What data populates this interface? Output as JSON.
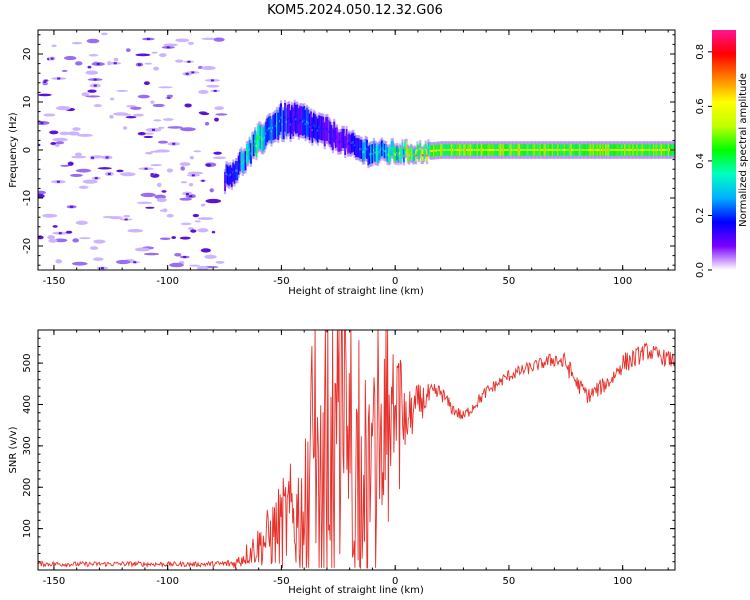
{
  "title": "KOM5.2024.050.12.32.G06",
  "colors": {
    "snr_line": "#e8302a",
    "scatter_light": "#cdb4ff",
    "scatter_mid": "#9a6cf0",
    "scatter_dark": "#5a14d8",
    "axis": "#000000"
  },
  "chart_data": [
    {
      "type": "heatmap",
      "name": "spectrogram",
      "xlabel": "Height of straight line (km)",
      "ylabel": "Frequency (Hz)",
      "xlim": [
        -157,
        123
      ],
      "ylim": [
        -25,
        25
      ],
      "x_ticks": [
        -150,
        -100,
        -50,
        0,
        50,
        100
      ],
      "x_tick_labels": [
        "-150",
        "-100",
        "-50",
        "0",
        "50",
        "100"
      ],
      "y_ticks": [
        -20,
        -10,
        0,
        10,
        20
      ],
      "y_tick_labels": [
        "-20",
        "-10",
        "0",
        "10",
        "20"
      ],
      "colorbar": {
        "label": "Normalized spectral amplitude",
        "range": [
          0,
          0.88
        ],
        "ticks": [
          0.0,
          0.2,
          0.4,
          0.6,
          0.8
        ],
        "tick_labels": [
          "0.0",
          "0.2",
          "0.4",
          "0.6",
          "0.8"
        ],
        "colormap": [
          "#ffffff",
          "#7a00ff",
          "#0000ff",
          "#00b0ff",
          "#00ffc0",
          "#00ff00",
          "#c0ff00",
          "#ffff00",
          "#ff8000",
          "#ff0000",
          "#ff1493"
        ]
      },
      "signal_track": {
        "x": [
          -75,
          -70,
          -65,
          -60,
          -55,
          -50,
          -45,
          -40,
          -35,
          -30,
          -25,
          -20,
          -15,
          -10,
          -5,
          0,
          10,
          20,
          50,
          100,
          123
        ],
        "y": [
          -6,
          -4,
          -1,
          2,
          4.5,
          6,
          6,
          5.5,
          4.5,
          3.5,
          2.5,
          1,
          0,
          -0.5,
          -0.5,
          -0.5,
          -0.5,
          0,
          0,
          0,
          0
        ],
        "amplitude": [
          0.15,
          0.2,
          0.25,
          0.3,
          0.22,
          0.2,
          0.15,
          0.18,
          0.14,
          0.12,
          0.1,
          0.12,
          0.18,
          0.25,
          0.3,
          0.35,
          0.45,
          0.45,
          0.45,
          0.45,
          0.45
        ],
        "width_hz": [
          2,
          2,
          2,
          2.5,
          2.5,
          3,
          3,
          3,
          2.5,
          2.5,
          2,
          2,
          2,
          2,
          1.5,
          1.5,
          1.2,
          1.2,
          1.2,
          1.2,
          1.2
        ]
      },
      "noise_region": {
        "x_range": [
          -157,
          -75
        ],
        "y_range": [
          -25,
          25
        ],
        "amplitude_range": [
          0.02,
          0.12
        ]
      }
    },
    {
      "type": "line",
      "name": "snr",
      "xlabel": "Height of straight line (km)",
      "ylabel": "SNR (v/v)",
      "xlim": [
        -157,
        123
      ],
      "ylim": [
        0,
        580
      ],
      "x_ticks": [
        -150,
        -100,
        -50,
        0,
        50,
        100
      ],
      "x_tick_labels": [
        "-150",
        "-100",
        "-50",
        "0",
        "50",
        "100"
      ],
      "y_ticks": [
        100,
        200,
        300,
        400,
        500
      ],
      "y_tick_labels": [
        "100",
        "200",
        "300",
        "400",
        "500"
      ],
      "series": [
        {
          "x": [
            -157,
            -140,
            -120,
            -100,
            -85,
            -75,
            -70,
            -65,
            -60,
            -55,
            -50,
            -45,
            -40,
            -35,
            -30,
            -25,
            -20,
            -15,
            -10,
            -5,
            0,
            5,
            10,
            15,
            20,
            25,
            30,
            35,
            40,
            45,
            50,
            55,
            60,
            65,
            70,
            75,
            80,
            85,
            90,
            95,
            100,
            105,
            110,
            115,
            120,
            123
          ],
          "y": [
            15,
            14,
            15,
            14,
            14,
            15,
            16,
            40,
            60,
            80,
            110,
            130,
            140,
            180,
            220,
            250,
            280,
            240,
            280,
            320,
            340,
            360,
            400,
            420,
            430,
            390,
            370,
            400,
            430,
            450,
            470,
            480,
            490,
            500,
            510,
            500,
            450,
            420,
            440,
            460,
            500,
            510,
            530,
            520,
            510,
            505
          ],
          "spread": [
            6,
            6,
            6,
            6,
            6,
            8,
            15,
            30,
            50,
            80,
            110,
            140,
            170,
            200,
            220,
            240,
            260,
            240,
            200,
            150,
            100,
            70,
            50,
            30,
            20,
            15,
            15,
            15,
            15,
            15,
            15,
            15,
            15,
            15,
            20,
            25,
            20,
            20,
            20,
            20,
            25,
            25,
            20,
            20,
            20,
            20
          ]
        }
      ]
    }
  ]
}
